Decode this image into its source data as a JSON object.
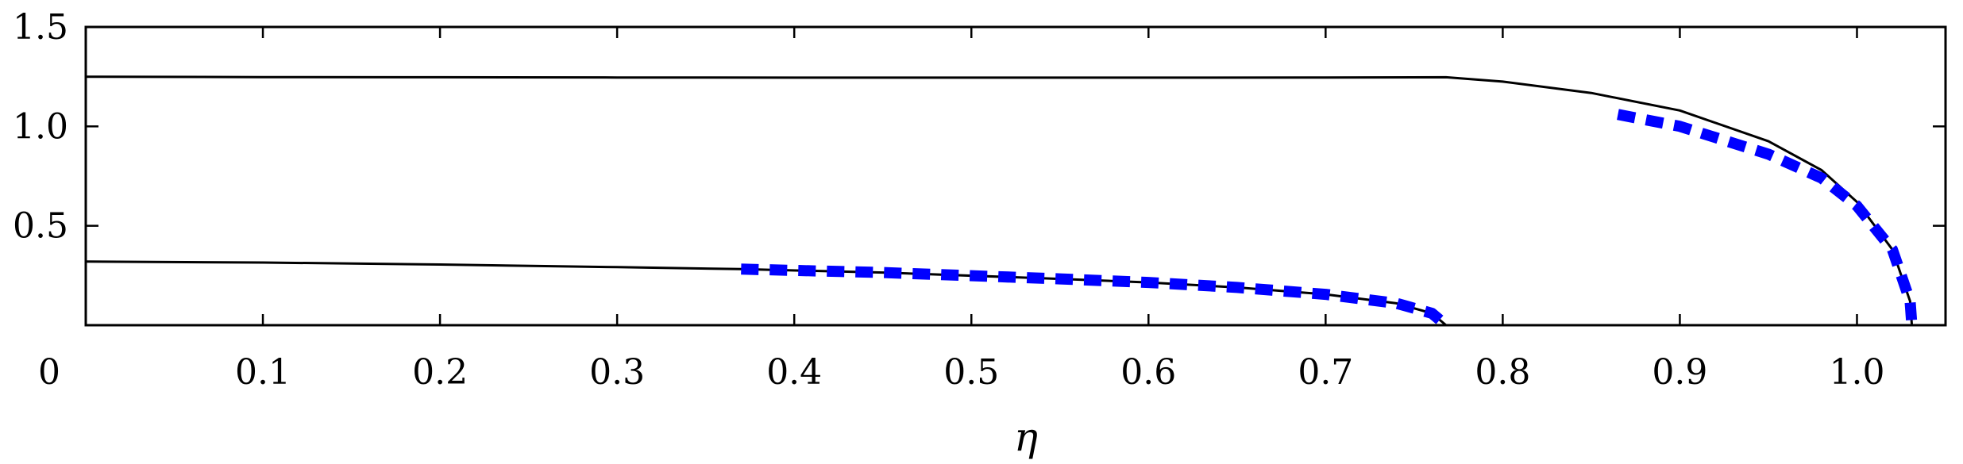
{
  "chart_data": {
    "type": "line",
    "title": "",
    "xlabel": "η",
    "ylabel": "",
    "xlim": [
      0,
      1.05
    ],
    "ylim": [
      0,
      1.5
    ],
    "grid": false,
    "x_ticks": [
      {
        "value": 0,
        "label": "0"
      },
      {
        "value": 0.1,
        "label": "0.1"
      },
      {
        "value": 0.2,
        "label": "0.2"
      },
      {
        "value": 0.3,
        "label": "0.3"
      },
      {
        "value": 0.4,
        "label": "0.4"
      },
      {
        "value": 0.5,
        "label": "0.5"
      },
      {
        "value": 0.6,
        "label": "0.6"
      },
      {
        "value": 0.7,
        "label": "0.7"
      },
      {
        "value": 0.8,
        "label": "0.8"
      },
      {
        "value": 0.9,
        "label": "0.9"
      },
      {
        "value": 1.0,
        "label": "1.0"
      }
    ],
    "y_ticks": [
      {
        "value": 0.5,
        "label": "0.5"
      },
      {
        "value": 1.0,
        "label": "1.0"
      },
      {
        "value": 1.5,
        "label": "1.5"
      }
    ],
    "series": [
      {
        "style": "solid",
        "color": "#000000",
        "points": [
          [
            0,
            1.25
          ],
          [
            0.1,
            1.248
          ],
          [
            0.2,
            1.247
          ],
          [
            0.3,
            1.246
          ],
          [
            0.4,
            1.245
          ],
          [
            0.5,
            1.245
          ],
          [
            0.6,
            1.245
          ],
          [
            0.7,
            1.246
          ],
          [
            0.768,
            1.247
          ],
          [
            0.8,
            1.225
          ],
          [
            0.85,
            1.168
          ],
          [
            0.9,
            1.08
          ],
          [
            0.95,
            0.925
          ],
          [
            0.98,
            0.78
          ],
          [
            1.0,
            0.62
          ],
          [
            1.02,
            0.38
          ],
          [
            1.03,
            0.12
          ],
          [
            1.031,
            0.0
          ]
        ]
      },
      {
        "style": "solid",
        "color": "#000000",
        "points": [
          [
            0,
            0.32
          ],
          [
            0.1,
            0.315
          ],
          [
            0.2,
            0.305
          ],
          [
            0.3,
            0.292
          ],
          [
            0.37,
            0.282
          ],
          [
            0.45,
            0.265
          ],
          [
            0.55,
            0.233
          ],
          [
            0.6,
            0.215
          ],
          [
            0.65,
            0.19
          ],
          [
            0.7,
            0.155
          ],
          [
            0.74,
            0.11
          ],
          [
            0.76,
            0.06
          ],
          [
            0.768,
            0.0
          ]
        ]
      },
      {
        "style": "dashed",
        "color": "#0000ff",
        "points": [
          [
            0.37,
            0.282
          ],
          [
            0.45,
            0.265
          ],
          [
            0.55,
            0.233
          ],
          [
            0.6,
            0.215
          ],
          [
            0.65,
            0.19
          ],
          [
            0.7,
            0.155
          ],
          [
            0.74,
            0.11
          ],
          [
            0.76,
            0.06
          ],
          [
            0.768,
            0.0
          ]
        ]
      },
      {
        "style": "dashed",
        "color": "#0000ff",
        "points": [
          [
            0.865,
            1.06
          ],
          [
            0.9,
            1.0
          ],
          [
            0.95,
            0.86
          ],
          [
            0.98,
            0.74
          ],
          [
            1.0,
            0.6
          ],
          [
            1.02,
            0.38
          ],
          [
            1.03,
            0.12
          ],
          [
            1.031,
            0.0
          ]
        ]
      }
    ]
  }
}
